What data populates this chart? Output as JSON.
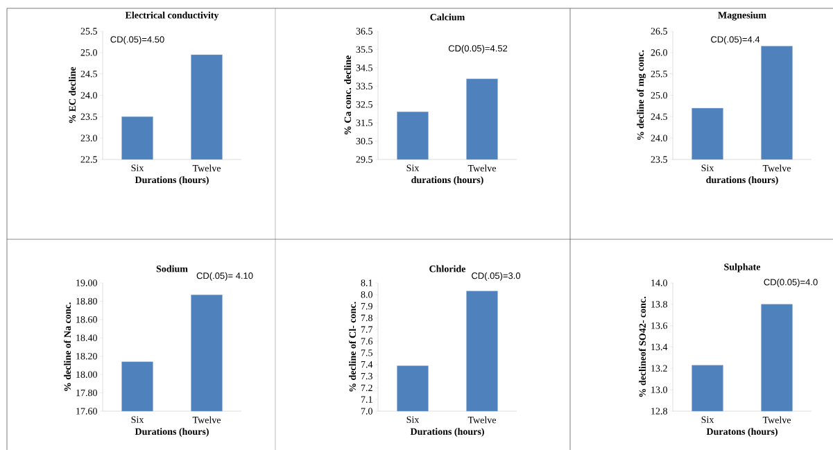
{
  "chart_data": [
    {
      "type": "bar",
      "title": "Electrical conductivity",
      "xlabel": "Durations (hours)",
      "ylabel": "% EC decline",
      "categories": [
        "Six",
        "Twelve"
      ],
      "values": [
        23.5,
        24.95
      ],
      "color": "#4f81bd",
      "ylim": [
        22.5,
        25.5
      ],
      "yticks": [
        {
          "value": 22.5,
          "label": "22.5"
        },
        {
          "value": 23.0,
          "label": "23.0"
        },
        {
          "value": 23.5,
          "label": "23.5"
        },
        {
          "value": 24.0,
          "label": "24.0"
        },
        {
          "value": 24.5,
          "label": "24.5"
        },
        {
          "value": 25.0,
          "label": "25.0"
        },
        {
          "value": 25.5,
          "label": "25.5"
        }
      ],
      "annotations": [
        "CD(.05)=4.50"
      ]
    },
    {
      "type": "bar",
      "title": "Calcium",
      "xlabel": "durations (hours)",
      "ylabel": "% Ca conc. decline",
      "categories": [
        "Six",
        "Twelve"
      ],
      "values": [
        32.1,
        33.9
      ],
      "color": "#4f81bd",
      "ylim": [
        29.5,
        36.5
      ],
      "yticks": [
        29.5,
        30.5,
        31.5,
        32.5,
        33.5,
        34.5,
        35.5,
        36.5
      ],
      "annotations": [
        "CD(0.05)=4.52"
      ]
    },
    {
      "type": "bar",
      "title": "Magnesium",
      "xlabel": "durations (hours)",
      "ylabel": "% decline of mg conc.",
      "categories": [
        "Six",
        "Twelve"
      ],
      "values": [
        24.7,
        26.15
      ],
      "color": "#4f81bd",
      "ylim": [
        23.5,
        26.5
      ],
      "yticks": [
        {
          "value": 23.5,
          "label": "23.5"
        },
        {
          "value": 24.0,
          "label": "24.0"
        },
        {
          "value": 24.5,
          "label": "24.5"
        },
        {
          "value": 25.0,
          "label": "25.0"
        },
        {
          "value": 25.5,
          "label": "25.5"
        },
        {
          "value": 26.0,
          "label": "26.0"
        },
        {
          "value": 26.5,
          "label": "26.5"
        }
      ],
      "annotations": [
        "CD(.05)=4.4"
      ]
    },
    {
      "type": "bar",
      "title": "Sodium",
      "xlabel": "Durations (hours)",
      "ylabel": "% decline of Na conc.",
      "categories": [
        "Six",
        "Twelve"
      ],
      "values": [
        18.14,
        18.87
      ],
      "color": "#4f81bd",
      "ylim": [
        17.6,
        19.0
      ],
      "yticks": [
        {
          "value": 17.6,
          "label": "17.60"
        },
        {
          "value": 17.8,
          "label": "17.80"
        },
        {
          "value": 18.0,
          "label": "18.00"
        },
        {
          "value": 18.2,
          "label": "18.20"
        },
        {
          "value": 18.4,
          "label": "18.40"
        },
        {
          "value": 18.6,
          "label": "18.60"
        },
        {
          "value": 18.8,
          "label": "18.80"
        },
        {
          "value": 19.0,
          "label": "19.00"
        }
      ],
      "annotations": [
        "CD(.05)= 4.10"
      ]
    },
    {
      "type": "bar",
      "title": "Chloride",
      "xlabel": "Durations (hours)",
      "ylabel": "% decline of Cl- conc.",
      "categories": [
        "Six",
        "Twelve"
      ],
      "values": [
        7.39,
        8.03
      ],
      "color": "#4f81bd",
      "ylim": [
        7.0,
        8.1
      ],
      "yticks": [
        {
          "value": 7.0,
          "label": "7.0"
        },
        7.1,
        7.2,
        7.3,
        7.4,
        7.5,
        7.6,
        7.7,
        7.8,
        7.9,
        {
          "value": 8.0,
          "label": "8.0"
        },
        8.1
      ],
      "annotations": [
        "CD(.05)=3.0"
      ]
    },
    {
      "type": "bar",
      "title": "Sulphate",
      "xlabel": "Duratons (hours)",
      "ylabel": "% declineof SO42- conc.",
      "categories": [
        "Six",
        "Twelve"
      ],
      "values": [
        13.23,
        13.8
      ],
      "color": "#4f81bd",
      "ylim": [
        12.8,
        14.0
      ],
      "yticks": [
        12.8,
        {
          "value": 13.0,
          "label": "13.0"
        },
        13.2,
        13.4,
        13.6,
        13.8,
        {
          "value": 14.0,
          "label": "14.0"
        }
      ],
      "annotations": [
        "CD(0.05)=4.0"
      ]
    }
  ]
}
